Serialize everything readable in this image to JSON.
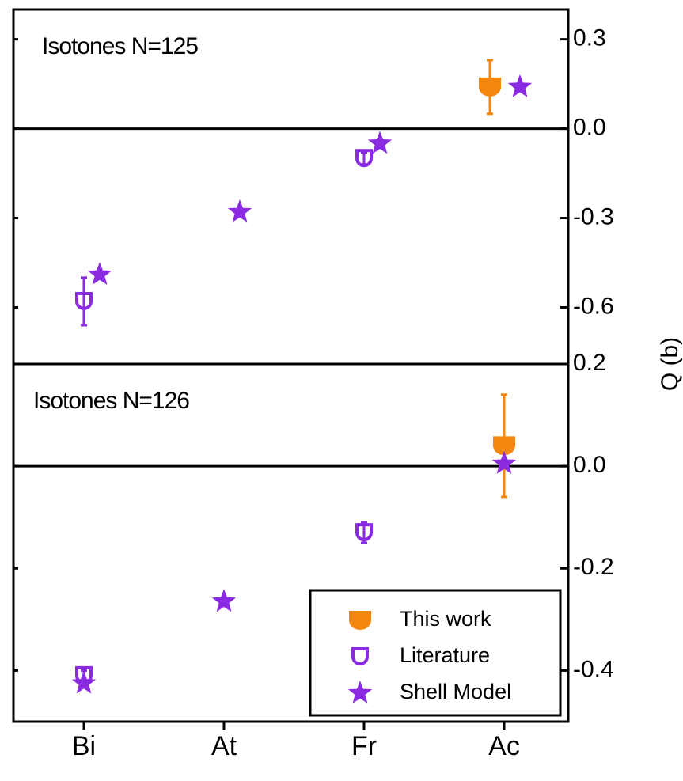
{
  "chart_data": [
    {
      "type": "scatter",
      "annotation": "Isotones N=125",
      "ylabel": "Q (b)",
      "ylim": [
        -0.79,
        0.4
      ],
      "yticks": [
        0.3,
        {
          "value": 0,
          "label": "0.0"
        },
        -0.3,
        -0.6
      ],
      "zero_line": true,
      "series": [
        {
          "marker": "filled-circle",
          "color": "#f5860f",
          "values": [
            null,
            null,
            null,
            0.14
          ],
          "errors": [
            null,
            null,
            null,
            0.09
          ]
        },
        {
          "marker": "open-cup",
          "color": "#8a2be2",
          "values": [
            -0.58,
            null,
            -0.1,
            null
          ],
          "errors": [
            0.08,
            null,
            0.02,
            null
          ]
        },
        {
          "marker": "star",
          "color": "#8a2be2",
          "values": [
            -0.49,
            -0.28,
            -0.05,
            0.14
          ]
        }
      ]
    },
    {
      "type": "scatter",
      "annotation": "Isotones N=126",
      "categories": [
        "Bi",
        "At",
        "Fr",
        "Ac"
      ],
      "ylim": [
        -0.5,
        0.2
      ],
      "yticks": [
        0.2,
        {
          "value": 0,
          "label": "0.0"
        },
        -0.2,
        -0.4
      ],
      "zero_line": true,
      "series": [
        {
          "name": "This work",
          "marker": "filled-circle",
          "color": "#f5860f",
          "values": [
            null,
            null,
            null,
            0.04
          ],
          "errors": [
            null,
            null,
            null,
            0.1
          ]
        },
        {
          "name": "Literature",
          "marker": "open-cup",
          "color": "#8a2be2",
          "values": [
            -0.41,
            null,
            -0.13,
            null
          ],
          "errors": [
            0.01,
            null,
            0.02,
            null
          ]
        },
        {
          "name": "Shell Model",
          "marker": "star",
          "color": "#8a2be2",
          "values": [
            -0.425,
            -0.265,
            null,
            0.005
          ]
        }
      ]
    }
  ]
}
